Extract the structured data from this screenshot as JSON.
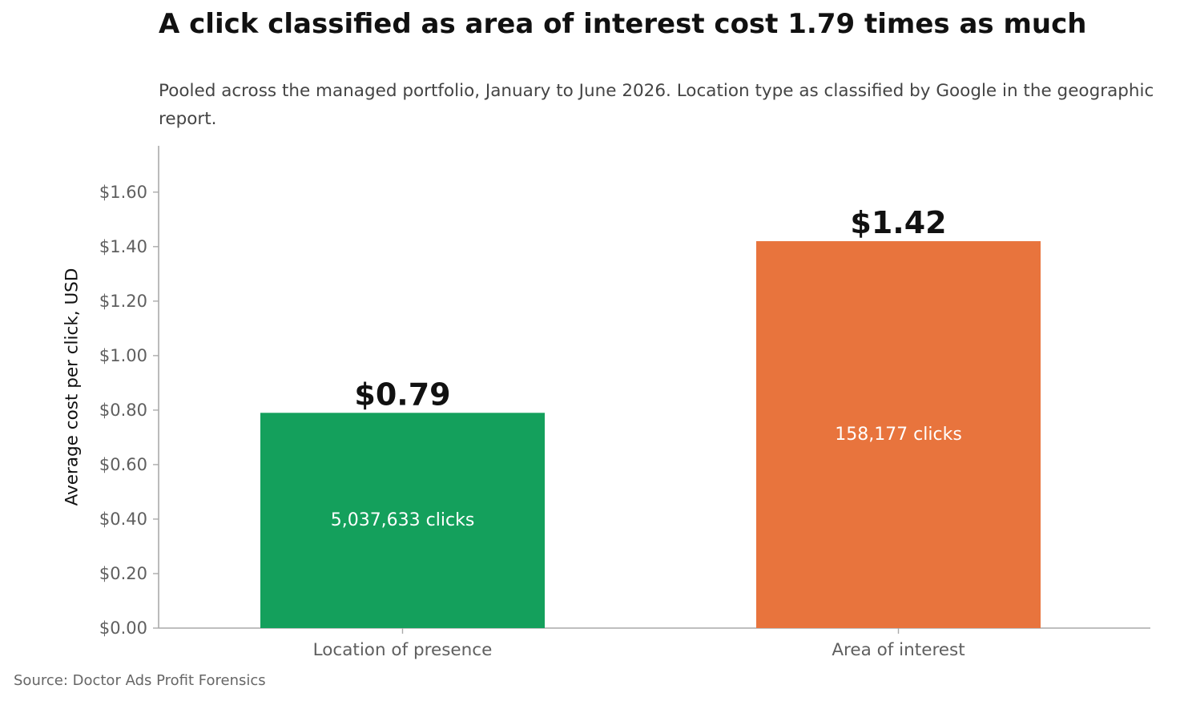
{
  "title": "A click classified as area of interest cost 1.79 times as much",
  "subtitle": "Pooled across the managed portfolio, January to June 2026. Location type as classified by Google in the geographic report.",
  "source": "Source: Doctor Ads Profit Forensics",
  "chart_data": {
    "type": "bar",
    "categories": [
      "Location of presence",
      "Area of interest"
    ],
    "values": [
      0.79,
      1.42
    ],
    "value_labels": [
      "$0.79",
      "$1.42"
    ],
    "inner_labels": [
      "5,037,633 clicks",
      "158,177 clicks"
    ],
    "colors": [
      "#14a05c",
      "#e8743d"
    ],
    "ylabel": "Average cost per click, USD",
    "ylim": [
      0,
      1.77
    ],
    "yticks": [
      0,
      0.2,
      0.4,
      0.6,
      0.8,
      1.0,
      1.2,
      1.4,
      1.6
    ],
    "ytick_labels": [
      "$0.00",
      "$0.20",
      "$0.40",
      "$0.60",
      "$0.80",
      "$1.00",
      "$1.20",
      "$1.40",
      "$1.60"
    ],
    "grid": false,
    "legend": "none"
  }
}
